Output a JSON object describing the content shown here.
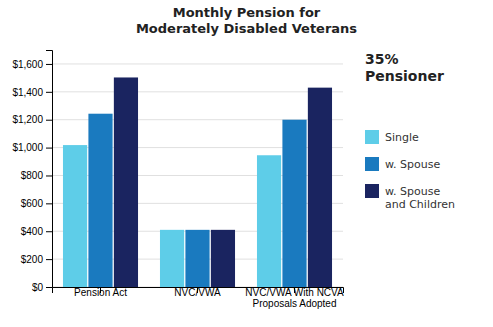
{
  "chart_data": {
    "type": "bar",
    "title": "Monthly Pension for\nModerately Disabled Veterans",
    "categories": [
      "Pension Act",
      "NVC/VWA",
      "NVC/VWA With NCVA\nProposals Adopted"
    ],
    "series": [
      {
        "name": "Single",
        "color": "#5ecde8",
        "values": [
          1018,
          410,
          945
        ]
      },
      {
        "name": "w. Spouse",
        "color": "#1a7abf",
        "values": [
          1243,
          410,
          1200
        ]
      },
      {
        "name": "w. Spouse\nand Children",
        "color": "#1a2460",
        "values": [
          1503,
          410,
          1430
        ]
      }
    ],
    "ylim": [
      0,
      1700
    ],
    "yticks": [
      {
        "value": 0,
        "label": "$0"
      },
      {
        "value": 200,
        "label": "$200"
      },
      {
        "value": 400,
        "label": "$400"
      },
      {
        "value": 600,
        "label": "$600"
      },
      {
        "value": 800,
        "label": "$800"
      },
      {
        "value": 1000,
        "label": "$1,000"
      },
      {
        "value": 1200,
        "label": "$1,200"
      },
      {
        "value": 1400,
        "label": "$1,400"
      },
      {
        "value": 1600,
        "label": "$1,600"
      }
    ],
    "grid": true,
    "legend": "right",
    "annotations": [
      "35%\nPensioner"
    ]
  }
}
